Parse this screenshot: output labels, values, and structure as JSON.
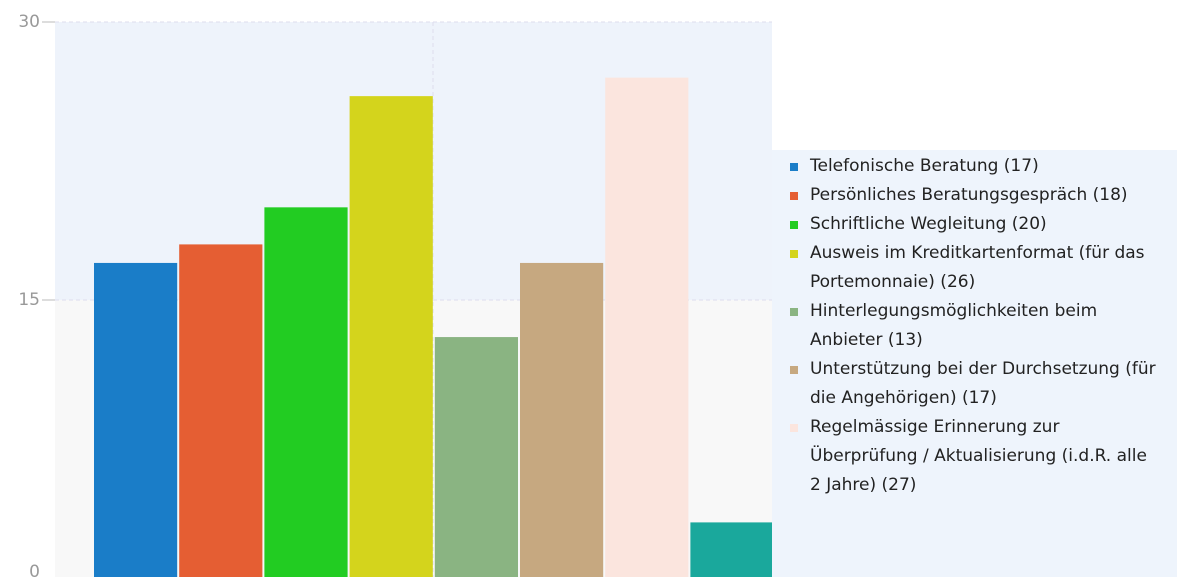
{
  "chart_data": {
    "type": "bar",
    "series": [
      {
        "name": "Telefonische Beratung (17)",
        "color": "#1a7dc8",
        "values": [
          17
        ]
      },
      {
        "name": "Persönliches Beratungsgespräch (18)",
        "color": "#e55e33",
        "values": [
          18
        ]
      },
      {
        "name": "Schriftliche Wegleitung (20)",
        "color": "#22cc22",
        "values": [
          20
        ]
      },
      {
        "name": "Ausweis im Kreditkartenformat (für das Portemonnaie) (26)",
        "color": "#d4d41c",
        "values": [
          26
        ]
      },
      {
        "name": "Hinterlegungsmöglichkeiten beim Anbieter (13)",
        "color": "#8ab482",
        "values": [
          13
        ]
      },
      {
        "name": "Unterstützung bei der Durchsetzung (für die Angehörigen) (17)",
        "color": "#c6a880",
        "values": [
          17
        ]
      },
      {
        "name": "Regelmässige Erinnerung zur Überprüfung / Aktualisierung (i.d.R. alle 2 Jahre) (27)",
        "color": "#fbe5de",
        "values": [
          27
        ]
      },
      {
        "name": null,
        "color": "#1aa89c",
        "values": [
          3
        ]
      }
    ],
    "ylim": [
      0,
      30
    ],
    "yticks": [
      0,
      15,
      30
    ],
    "grid": true
  }
}
